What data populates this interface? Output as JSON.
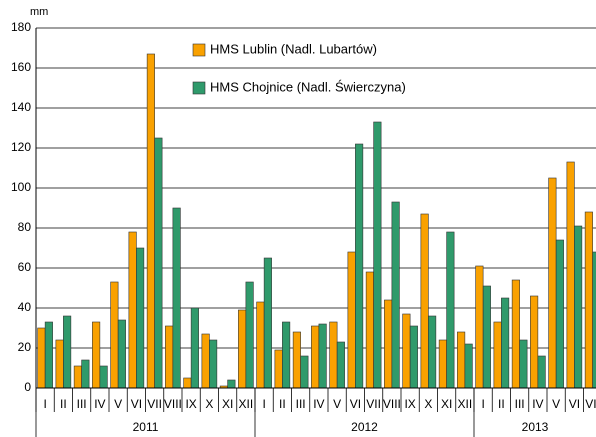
{
  "chart_data": {
    "type": "bar",
    "y_label": "mm",
    "categories": [
      "I",
      "II",
      "III",
      "IV",
      "V",
      "VI",
      "VII",
      "VIII",
      "IX",
      "X",
      "XI",
      "XII",
      "I",
      "II",
      "III",
      "IV",
      "V",
      "VI",
      "VII",
      "VIII",
      "IX",
      "X",
      "XI",
      "XII",
      "I",
      "II",
      "III",
      "IV",
      "V",
      "VI",
      "VII"
    ],
    "groups": [
      "2011",
      "2012",
      "2013"
    ],
    "series": [
      {
        "name": "HMS Lublin (Nadl. Lubartów)",
        "color": "#f9a100",
        "values": [
          30,
          24,
          11,
          33,
          53,
          78,
          167,
          31,
          5,
          27,
          1,
          39,
          43,
          19,
          28,
          31,
          33,
          68,
          58,
          44,
          37,
          87,
          24,
          28,
          61,
          33,
          54,
          46,
          105,
          113,
          88
        ]
      },
      {
        "name": "HMS Chojnice (Nadl. Świerczyna)",
        "color": "#2f9a6b",
        "values": [
          33,
          36,
          14,
          11,
          34,
          70,
          125,
          90,
          40,
          24,
          4,
          53,
          65,
          33,
          16,
          32,
          23,
          122,
          133,
          93,
          31,
          36,
          78,
          22,
          51,
          45,
          24,
          16,
          74,
          81,
          68
        ]
      }
    ],
    "ylim": [
      0,
      180
    ],
    "yticks": [
      0,
      20,
      40,
      60,
      80,
      100,
      120,
      140,
      160,
      180
    ],
    "grid": true
  }
}
